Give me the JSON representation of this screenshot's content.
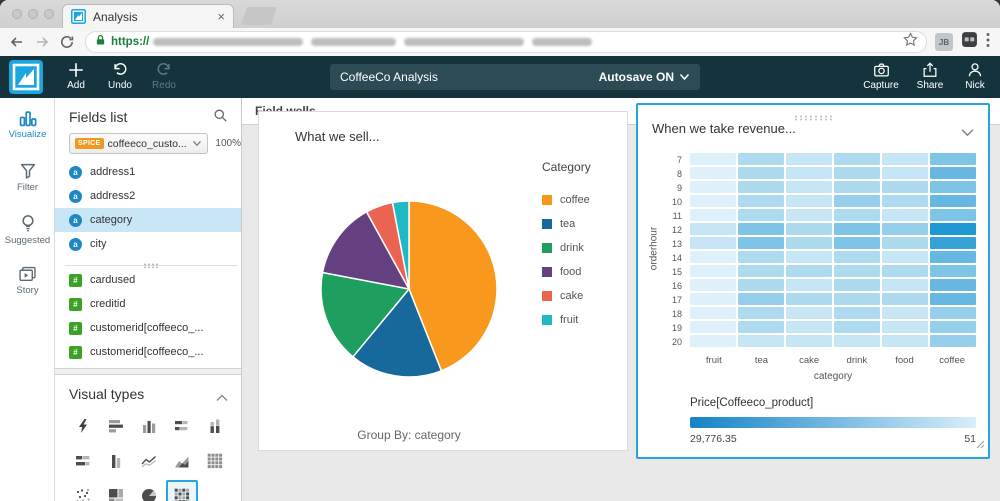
{
  "browser": {
    "tab": {
      "title": "Analysis",
      "close_glyph": "×"
    },
    "address_bar": {
      "scheme": "https://"
    },
    "extensions": [
      {
        "label": "JB"
      }
    ]
  },
  "toolbar": {
    "add": "Add",
    "undo": "Undo",
    "redo": "Redo",
    "analysis_title": "CoffeeCo Analysis",
    "autosave": "Autosave ON",
    "capture": "Capture",
    "share": "Share",
    "user": "Nick"
  },
  "nav_rail": {
    "items": [
      {
        "label": "Visualize",
        "icon": "bar-chart-icon",
        "active": true
      },
      {
        "label": "Filter",
        "icon": "funnel-icon",
        "active": false
      },
      {
        "label": "Suggested",
        "icon": "lightbulb-icon",
        "active": false
      },
      {
        "label": "Story",
        "icon": "storyboard-icon",
        "active": false
      }
    ]
  },
  "fields_panel": {
    "title": "Fields list",
    "dataset": {
      "badge": "SPICE",
      "name": "coffeeco_custo...",
      "import_status": "100%"
    },
    "dimension_glyph": "a",
    "measure_glyph": "#",
    "fields": [
      {
        "name": "address1",
        "type": "dimension",
        "selected": false,
        "divider_after": false
      },
      {
        "name": "address2",
        "type": "dimension",
        "selected": false,
        "divider_after": false
      },
      {
        "name": "category",
        "type": "dimension",
        "selected": true,
        "divider_after": false
      },
      {
        "name": "city",
        "type": "dimension",
        "selected": false,
        "divider_after": true
      },
      {
        "name": "cardused",
        "type": "measure",
        "selected": false,
        "divider_after": false
      },
      {
        "name": "creditid",
        "type": "measure",
        "selected": false,
        "divider_after": false
      },
      {
        "name": "customerid[coffeeco_...",
        "type": "measure",
        "selected": false,
        "divider_after": false
      },
      {
        "name": "customerid[coffeeco_...",
        "type": "measure",
        "selected": false,
        "divider_after": false
      }
    ]
  },
  "visual_types": {
    "title": "Visual types",
    "items": [
      {
        "name": "auto-graph",
        "selected": false
      },
      {
        "name": "horizontal-bar-chart",
        "selected": false
      },
      {
        "name": "vertical-bar-chart",
        "selected": false
      },
      {
        "name": "horizontal-stacked-bar-chart",
        "selected": false
      },
      {
        "name": "vertical-stacked-bar-chart",
        "selected": false
      },
      {
        "name": "horizontal-stacked-100-bar-chart",
        "selected": false
      },
      {
        "name": "vertical-grouped-bar-chart",
        "selected": false
      },
      {
        "name": "line-chart",
        "selected": false
      },
      {
        "name": "area-chart",
        "selected": false
      },
      {
        "name": "pivot-table",
        "selected": false
      },
      {
        "name": "scatter-plot",
        "selected": false
      },
      {
        "name": "tree-map",
        "selected": false
      },
      {
        "name": "pie-chart",
        "selected": false
      },
      {
        "name": "heat-map",
        "selected": true
      }
    ]
  },
  "canvas": {
    "field_wells_label": "Field wells"
  },
  "chart_data": [
    {
      "type": "pie",
      "title": "What we sell...",
      "legend_title": "Category",
      "legend_position": "right",
      "group_by_label": "Group By: category",
      "categories": [
        "coffee",
        "tea",
        "drink",
        "food",
        "cake",
        "fruit"
      ],
      "values": [
        44,
        17,
        17,
        14,
        5,
        3
      ],
      "values_unit": "percent_estimated",
      "colors": [
        "#F8981D",
        "#17689B",
        "#1E9E5F",
        "#654080",
        "#EB6351",
        "#1FB8C5"
      ]
    },
    {
      "type": "heatmap",
      "title": "When we take revenue...",
      "x": [
        "fruit",
        "tea",
        "cake",
        "drink",
        "food",
        "coffee"
      ],
      "xlabel": "category",
      "y": [
        7,
        8,
        9,
        10,
        11,
        12,
        13,
        14,
        15,
        16,
        17,
        18,
        19,
        20
      ],
      "ylabel": "orderhour",
      "intensity_scale": [
        1,
        5
      ],
      "color_low": "#DEF0FA",
      "color_high": "#1E97D3",
      "values": [
        [
          1,
          2,
          1.5,
          2,
          1.5,
          3
        ],
        [
          1,
          2,
          1.5,
          2,
          1.5,
          3.5
        ],
        [
          1,
          2,
          1.5,
          2,
          2,
          3
        ],
        [
          1,
          2,
          1.5,
          2.5,
          2,
          3.5
        ],
        [
          1,
          2,
          1.5,
          2,
          1.5,
          3
        ],
        [
          1.5,
          3,
          2,
          3,
          2.5,
          5
        ],
        [
          1.5,
          3,
          2,
          3,
          2,
          4.5
        ],
        [
          1,
          2,
          1.5,
          2,
          1.5,
          3.5
        ],
        [
          1,
          2,
          2,
          2,
          2,
          3
        ],
        [
          1,
          2,
          1.5,
          2,
          1.5,
          3.5
        ],
        [
          1,
          2.5,
          2,
          2,
          2,
          3.5
        ],
        [
          1,
          2,
          1.5,
          2,
          1.5,
          2.5
        ],
        [
          1,
          2,
          1.5,
          2,
          1.5,
          2.5
        ],
        [
          1,
          1.5,
          1.5,
          1.5,
          1.5,
          2.5
        ]
      ],
      "legend": {
        "label": "Price[Coffeeco_product]",
        "min": "29,776.35",
        "max": "51"
      }
    }
  ]
}
